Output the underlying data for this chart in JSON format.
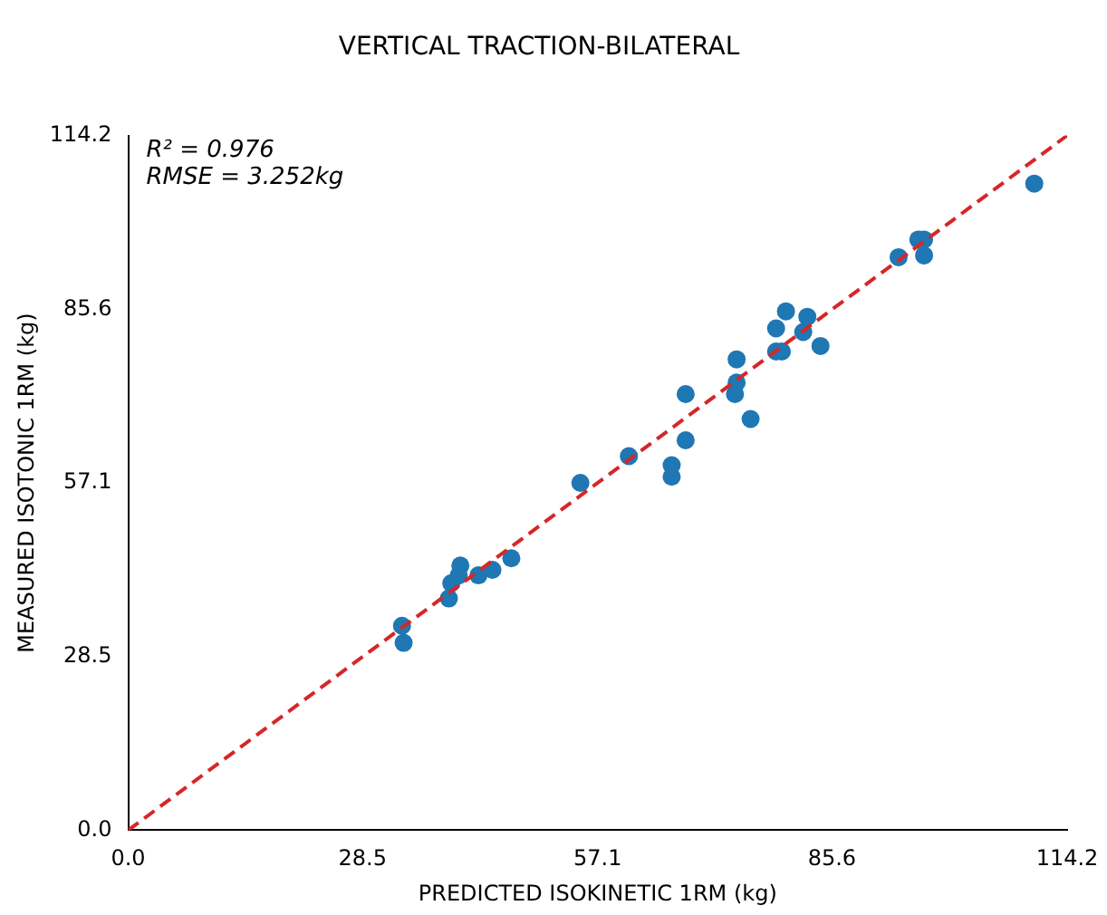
{
  "chart_data": {
    "type": "scatter",
    "title": "VERTICAL TRACTION-BILATERAL",
    "xlabel": "PREDICTED ISOKINETIC 1RM (kg)",
    "ylabel": "MEASURED ISOTONIC 1RM (kg)",
    "annotations": [
      "R² = 0.976",
      "RMSE = 3.252kg"
    ],
    "xlim": [
      0,
      114.2
    ],
    "ylim": [
      0,
      114.2
    ],
    "xticks": [
      {
        "value": 0,
        "label": "0.0"
      },
      28.5,
      57.1,
      85.6,
      114.2
    ],
    "yticks": [
      {
        "value": 0,
        "label": "0.0"
      },
      28.5,
      57.1,
      85.6,
      114.2
    ],
    "grid": false,
    "legend": false,
    "marker": "circle",
    "series": [
      {
        "type": "scatter",
        "color": "#1f77b4",
        "x": [
          33.3,
          33.5,
          39.3,
          39.0,
          40.4,
          40.2,
          42.6,
          44.3,
          46.6,
          55.0,
          60.9,
          66.1,
          66.1,
          67.8,
          67.8,
          73.8,
          74.0,
          74.0,
          75.7,
          78.8,
          79.5,
          80.0,
          78.8,
          82.1,
          82.6,
          84.2,
          93.7,
          96.1,
          96.8,
          96.8,
          110.2
        ],
        "values": [
          33.6,
          30.8,
          40.6,
          38.1,
          43.5,
          41.9,
          41.9,
          42.8,
          44.7,
          57.1,
          61.5,
          60.0,
          58.1,
          71.7,
          64.1,
          71.7,
          73.6,
          77.4,
          67.6,
          82.5,
          78.7,
          85.3,
          78.7,
          81.9,
          84.4,
          79.6,
          94.2,
          97.1,
          97.1,
          94.5,
          106.3
        ]
      },
      {
        "type": "line",
        "color": "#d62728",
        "line_style": "dashed",
        "marker": "none",
        "x": [
          0,
          114.2
        ],
        "values": [
          0,
          114.2
        ]
      }
    ]
  }
}
